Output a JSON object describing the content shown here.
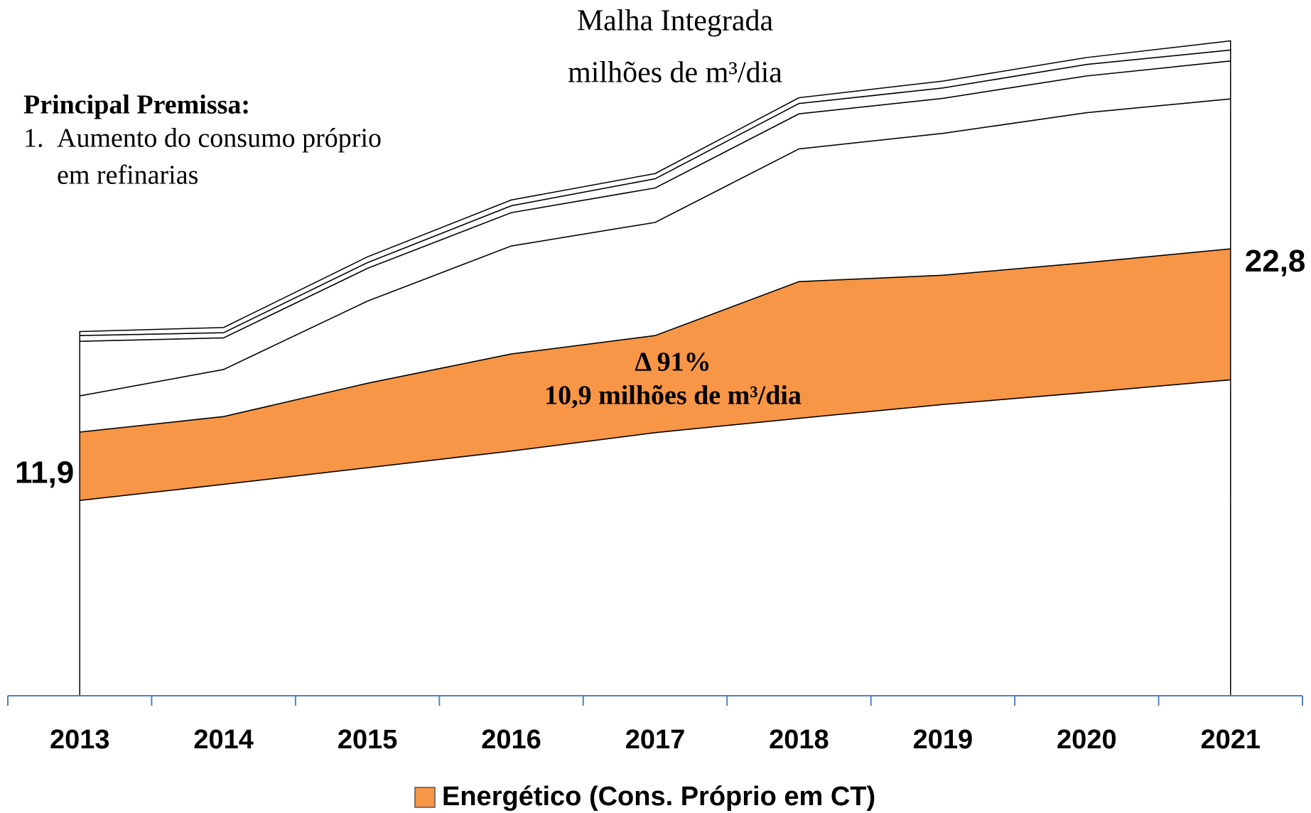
{
  "chart_data": {
    "type": "stacked_area",
    "title": "Malha Integrada",
    "subtitle": "milhões de m³/dia",
    "annotations": {
      "heading": "Principal Premissa:",
      "number": "1.",
      "lines": [
        "Aumento do consumo próprio",
        "em refinarias"
      ],
      "delta": "Δ 91%",
      "delta_detail": "10,9 milhões de m³/dia"
    },
    "categories": [
      "2013",
      "2014",
      "2015",
      "2016",
      "2017",
      "2018",
      "2019",
      "2020",
      "2021"
    ],
    "ylim": [
      0,
      120
    ],
    "series": [
      {
        "color": "#ffffff",
        "values": [
          34.0,
          36.8,
          39.7,
          42.6,
          45.8,
          48.3,
          50.7,
          52.8,
          55.0
        ]
      },
      {
        "name": "Energético (Cons. Próprio em CT)",
        "color": "#f79646",
        "values": [
          11.9,
          11.8,
          14.7,
          16.9,
          16.9,
          23.8,
          22.5,
          22.6,
          22.8
        ],
        "value_labels": [
          "11,9",
          null,
          null,
          null,
          null,
          null,
          null,
          null,
          "22,8"
        ]
      },
      {
        "color": "#ffffff",
        "values": [
          6.3,
          8.2,
          14.3,
          18.8,
          19.7,
          23.1,
          24.7,
          26.1,
          26.1
        ]
      },
      {
        "color": "#ffffff",
        "values": [
          9.5,
          5.5,
          5.7,
          5.8,
          6.0,
          6.1,
          6.1,
          6.4,
          6.6
        ]
      },
      {
        "color": "#ffffff",
        "values": [
          1.0,
          0.9,
          1.0,
          1.2,
          1.6,
          1.8,
          1.8,
          2.0,
          1.9
        ]
      },
      {
        "color": "#ffffff",
        "values": [
          0.7,
          0.9,
          1.0,
          1.0,
          0.9,
          1.0,
          1.2,
          1.2,
          1.6
        ]
      }
    ],
    "legend": "bottom"
  }
}
